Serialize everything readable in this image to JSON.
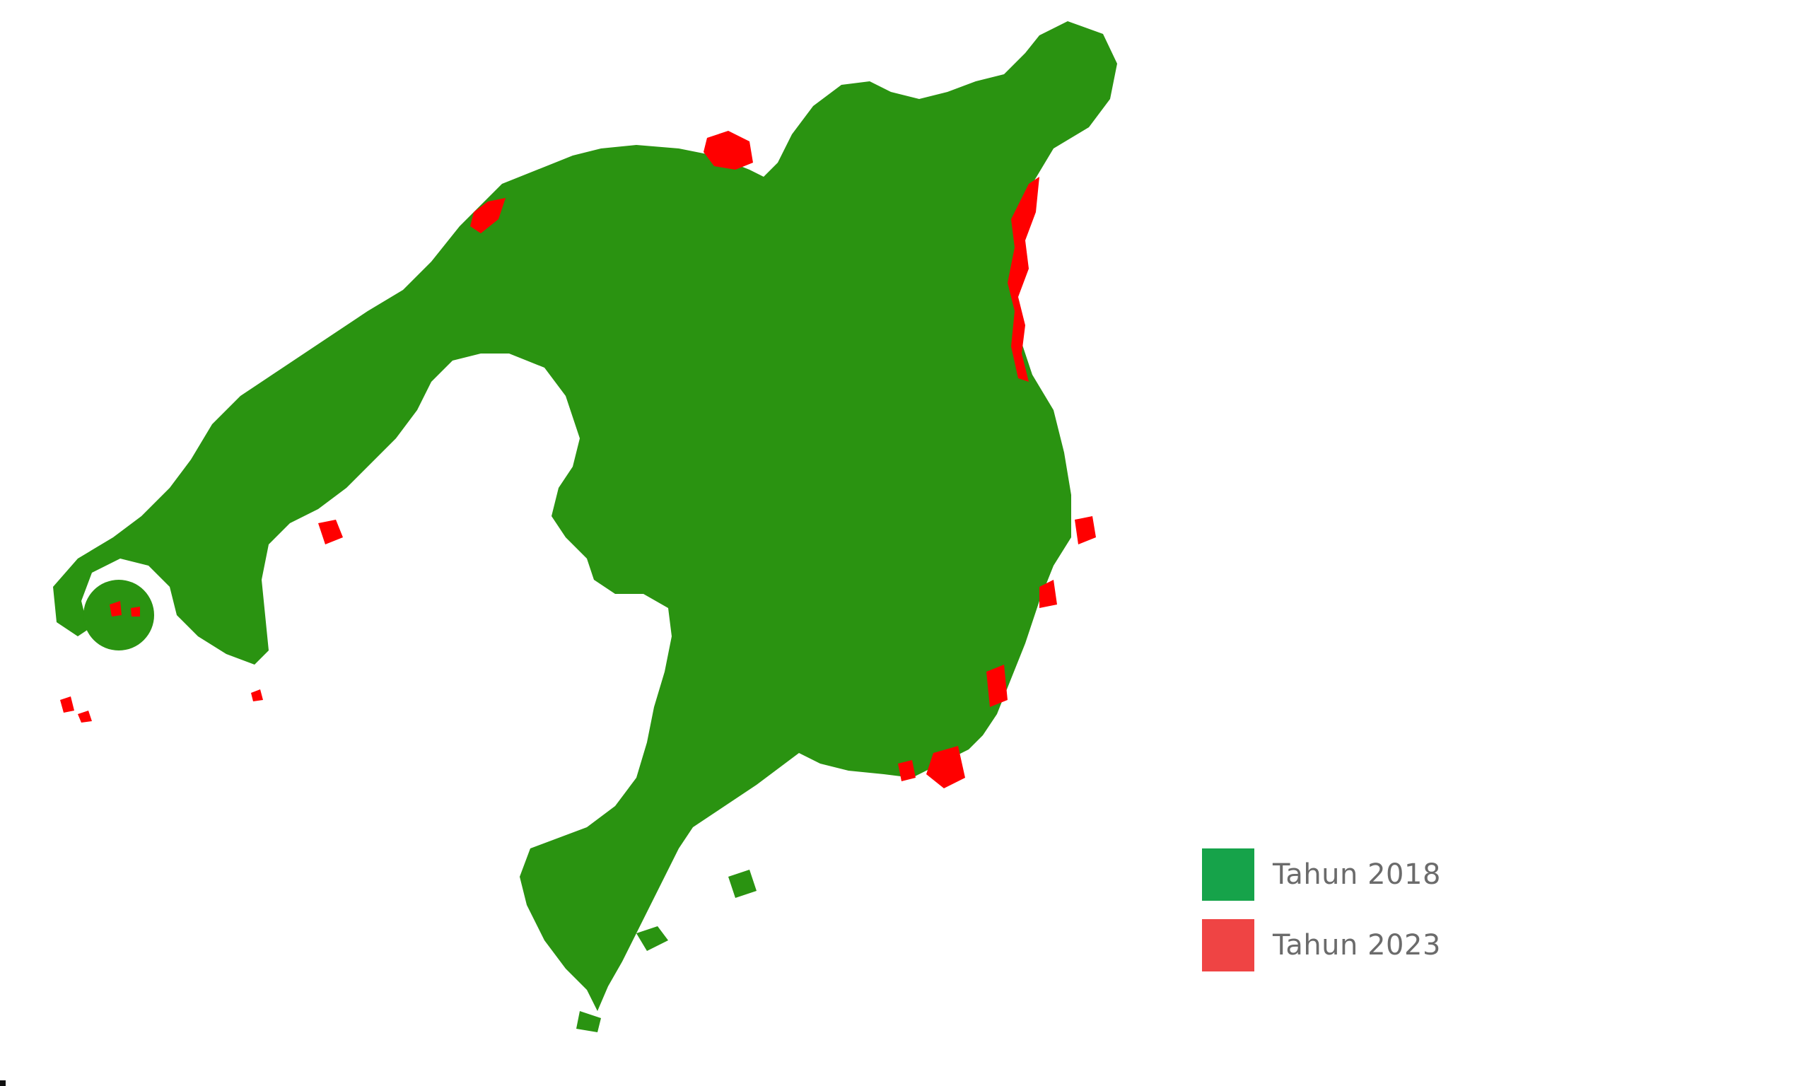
{
  "map": {
    "land_color": "#2a9311",
    "change_color": "#ff0000"
  },
  "legend": {
    "items": [
      {
        "label": "Tahun 2018",
        "color": "#16a34a"
      },
      {
        "label": "Tahun 2023",
        "color": "#ef4444"
      }
    ]
  }
}
